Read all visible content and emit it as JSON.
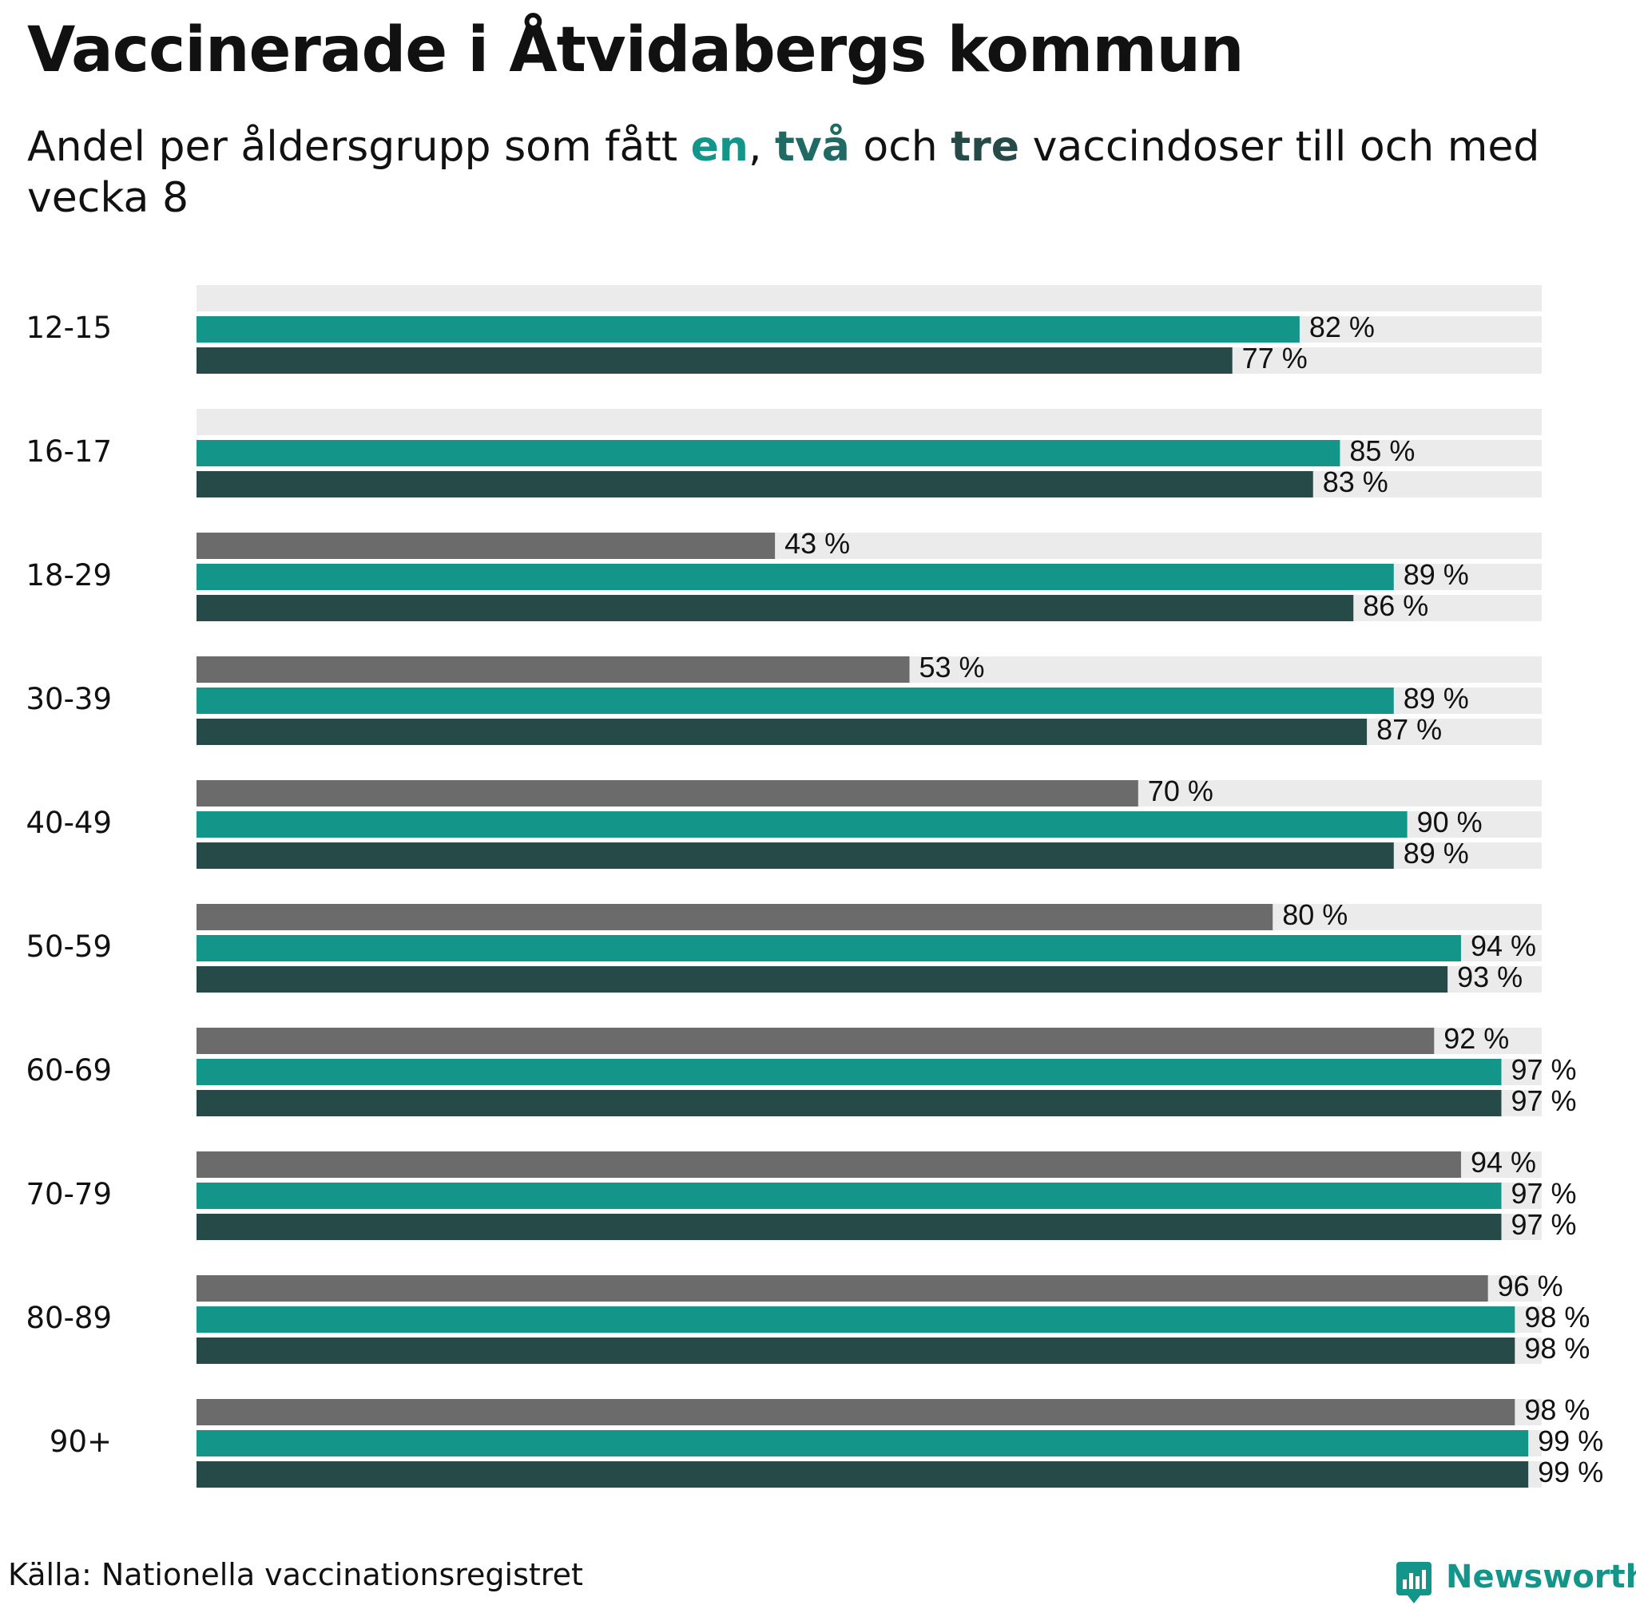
{
  "title": "Vaccinerade i Åtvidabergs kommun",
  "subtitle": {
    "part1": "Andel per åldersgrupp som fått ",
    "k1": "en",
    "part2": ", ",
    "k2": "två",
    "part3": " och ",
    "k3": "tre",
    "part4": " vaccindoser till och med vecka 8"
  },
  "colors": {
    "dose1": "#14958a",
    "dose2": "#264a47",
    "dose3": "#6b6b6b",
    "track": "#ebebeb",
    "label": "#111111"
  },
  "chart_data": {
    "type": "bar",
    "orientation": "horizontal",
    "title": "Vaccinerade i Åtvidabergs kommun",
    "subtitle": "Andel per åldersgrupp som fått en, två och tre vaccindoser till och med vecka 8",
    "xlim": [
      0,
      100
    ],
    "unit": " %",
    "categories": [
      "12-15",
      "16-17",
      "18-29",
      "30-39",
      "40-49",
      "50-59",
      "60-69",
      "70-79",
      "80-89",
      "90+"
    ],
    "series": [
      {
        "name": "tre",
        "color_key": "dose3",
        "values": [
          null,
          null,
          43,
          53,
          70,
          80,
          92,
          94,
          96,
          98
        ]
      },
      {
        "name": "en",
        "color_key": "dose1",
        "values": [
          82,
          85,
          89,
          89,
          90,
          94,
          97,
          97,
          98,
          99
        ]
      },
      {
        "name": "två",
        "color_key": "dose2",
        "values": [
          77,
          83,
          86,
          87,
          89,
          93,
          97,
          97,
          98,
          99
        ]
      }
    ]
  },
  "footer": {
    "source": "Källa: Nationella vaccinationsregistret"
  },
  "brand": {
    "name": "Newsworthy"
  }
}
